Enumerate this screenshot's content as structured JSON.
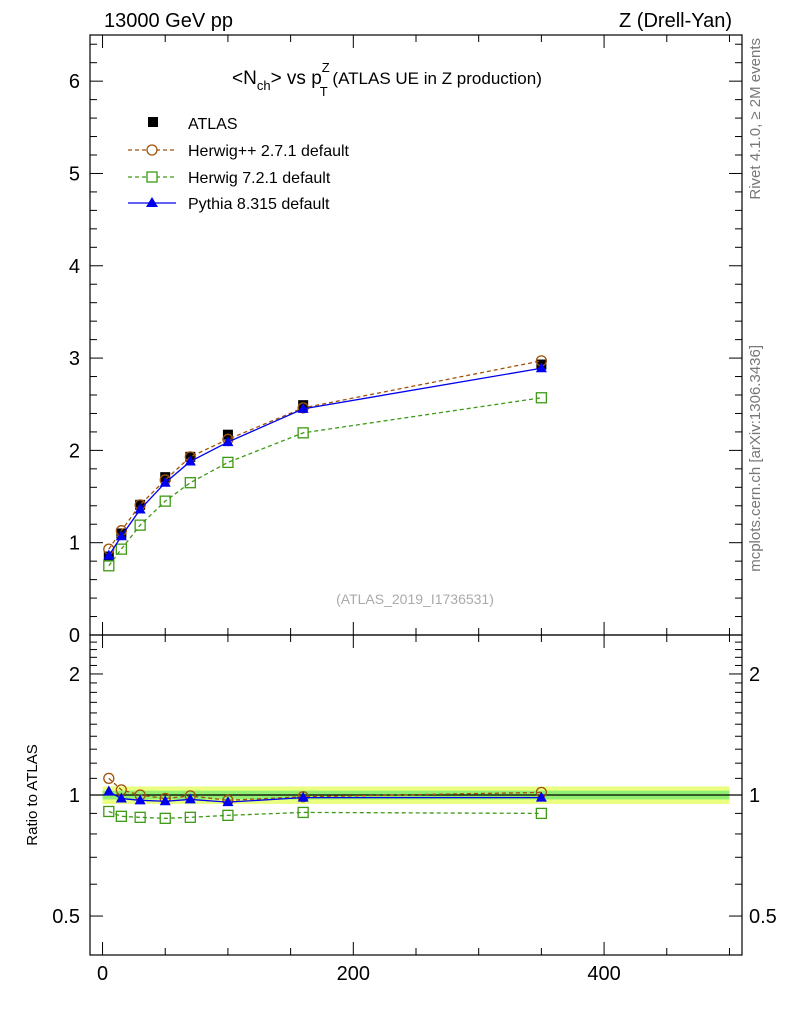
{
  "header": {
    "energy_label": "13000 GeV pp",
    "process_label": "Z (Drell-Yan)"
  },
  "title": {
    "prefix": "<N",
    "sub": "ch",
    "mid": "> vs p",
    "sup": "Z",
    "sub2": "T",
    "suffix": " (ATLAS UE in Z production)"
  },
  "side_labels": {
    "rivet": "Rivet 4.1.0, ≥ 2M events",
    "mcplots": "mcplots.cern.ch [arXiv:1306.3436]"
  },
  "analysis_id": "(ATLAS_2019_I1736531)",
  "ratio_ylabel": "Ratio to ATLAS",
  "colors": {
    "herwigpp": "#a0520a",
    "herwig7": "#3c9a14",
    "pythia": "#0000ee",
    "data": "#000000",
    "band_outer": "#eaff80",
    "band_inner": "#90ee70"
  },
  "chart_data": {
    "type": "scatter",
    "x": [
      5,
      15,
      30,
      50,
      70,
      100,
      160,
      350
    ],
    "main": {
      "ylim": [
        0,
        6.5
      ],
      "yticks": [
        "0",
        "1",
        "2",
        "3",
        "4",
        "5",
        "6"
      ],
      "series": [
        {
          "key": "atlas",
          "name": "ATLAS",
          "marker": "square-filled",
          "values": [
            0.85,
            1.1,
            1.41,
            1.71,
            1.93,
            2.17,
            2.49,
            2.93
          ]
        },
        {
          "key": "herwigpp",
          "name": "Herwig++ 2.7.1 default",
          "marker": "circle-open",
          "line": "dashed",
          "values": [
            0.93,
            1.13,
            1.41,
            1.68,
            1.93,
            2.12,
            2.46,
            2.97
          ]
        },
        {
          "key": "herwig7",
          "name": "Herwig 7.2.1 default",
          "marker": "square-open",
          "line": "dashed",
          "values": [
            0.75,
            0.93,
            1.19,
            1.45,
            1.65,
            1.87,
            2.19,
            2.57
          ]
        },
        {
          "key": "pythia",
          "name": "Pythia 8.315 default",
          "marker": "triangle-filled",
          "line": "solid",
          "values": [
            0.86,
            1.07,
            1.36,
            1.65,
            1.88,
            2.09,
            2.45,
            2.89
          ]
        }
      ]
    },
    "ratio": {
      "ylim": [
        0.4,
        2.5
      ],
      "yticks": [
        "0.5",
        "1",
        "2"
      ],
      "band_halfwidth": 0.05,
      "series": [
        {
          "key": "herwigpp",
          "values": [
            1.1,
            1.03,
            1.0,
            0.98,
            0.995,
            0.97,
            0.99,
            1.015
          ]
        },
        {
          "key": "herwig7",
          "values": [
            0.91,
            0.885,
            0.88,
            0.875,
            0.88,
            0.89,
            0.905,
            0.9
          ]
        },
        {
          "key": "pythia",
          "values": [
            1.02,
            0.98,
            0.97,
            0.965,
            0.975,
            0.96,
            0.985,
            0.985
          ]
        }
      ]
    },
    "xlim": [
      -10,
      510
    ],
    "xticks": [
      "0",
      "200",
      "400"
    ]
  }
}
